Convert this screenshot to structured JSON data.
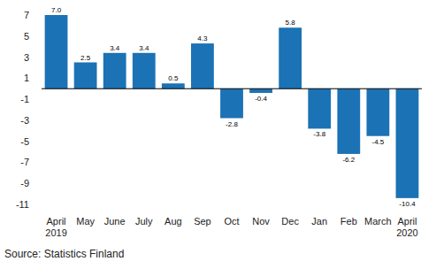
{
  "chart_data": {
    "type": "bar",
    "categories": [
      "April 2019",
      "May",
      "June",
      "July",
      "Aug",
      "Sep",
      "Oct",
      "Nov",
      "Dec",
      "Jan",
      "Feb",
      "March",
      "April 2020"
    ],
    "values": [
      7.0,
      2.5,
      3.4,
      3.4,
      0.5,
      4.3,
      -2.8,
      -0.4,
      5.8,
      -3.8,
      -6.2,
      -4.5,
      -10.4
    ],
    "value_labels": [
      "7.0",
      "2.5",
      "3.4",
      "3.4",
      "0.5",
      "4.3",
      "-2.8",
      "-0.4",
      "5.8",
      "-3.8",
      "-6.2",
      "-4.5",
      "-10.4"
    ],
    "color": "#1b72b5",
    "ylim": [
      -11,
      7
    ],
    "yticks": [
      -11,
      -9,
      -7,
      -5,
      -3,
      -1,
      1,
      3,
      5,
      7
    ],
    "grid": false,
    "data_labels": true,
    "source": "Source: Statistics Finland"
  }
}
